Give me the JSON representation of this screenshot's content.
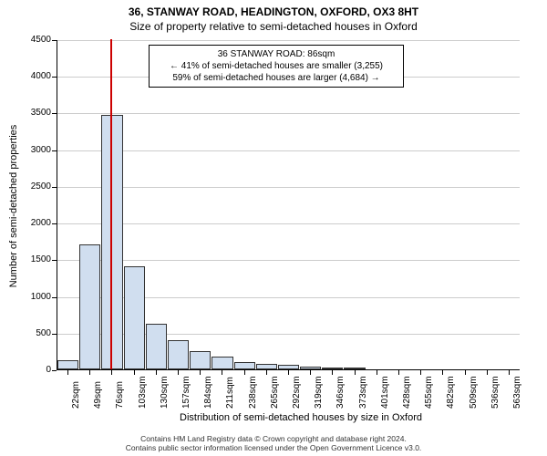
{
  "chart": {
    "type": "histogram",
    "title_main": "36, STANWAY ROAD, HEADINGTON, OXFORD, OX3 8HT",
    "title_sub": "Size of property relative to semi-detached houses in Oxford",
    "ylabel": "Number of semi-detached properties",
    "xlabel": "Distribution of semi-detached houses by size in Oxford",
    "ylim": [
      0,
      4500
    ],
    "ytick_step": 500,
    "x_categories": [
      "22sqm",
      "49sqm",
      "76sqm",
      "103sqm",
      "130sqm",
      "157sqm",
      "184sqm",
      "211sqm",
      "238sqm",
      "265sqm",
      "292sqm",
      "319sqm",
      "346sqm",
      "373sqm",
      "401sqm",
      "428sqm",
      "455sqm",
      "482sqm",
      "509sqm",
      "536sqm",
      "563sqm"
    ],
    "values": [
      120,
      1700,
      3470,
      1400,
      620,
      400,
      250,
      170,
      100,
      70,
      60,
      40,
      30,
      30,
      0,
      0,
      0,
      0,
      0,
      0,
      0
    ],
    "bar_fill": "#d0deef",
    "bar_stroke": "#333333",
    "marker_color": "#cc0000",
    "marker_x_index": 2.4,
    "annotation": {
      "line1": "36 STANWAY ROAD: 86sqm",
      "line2": "← 41% of semi-detached houses are smaller (3,255)",
      "line3": "59% of semi-detached houses are larger (4,684) →"
    },
    "background_color": "#ffffff",
    "grid_color": "#cccccc"
  },
  "footer": {
    "line1": "Contains HM Land Registry data © Crown copyright and database right 2024.",
    "line2": "Contains public sector information licensed under the Open Government Licence v3.0."
  }
}
